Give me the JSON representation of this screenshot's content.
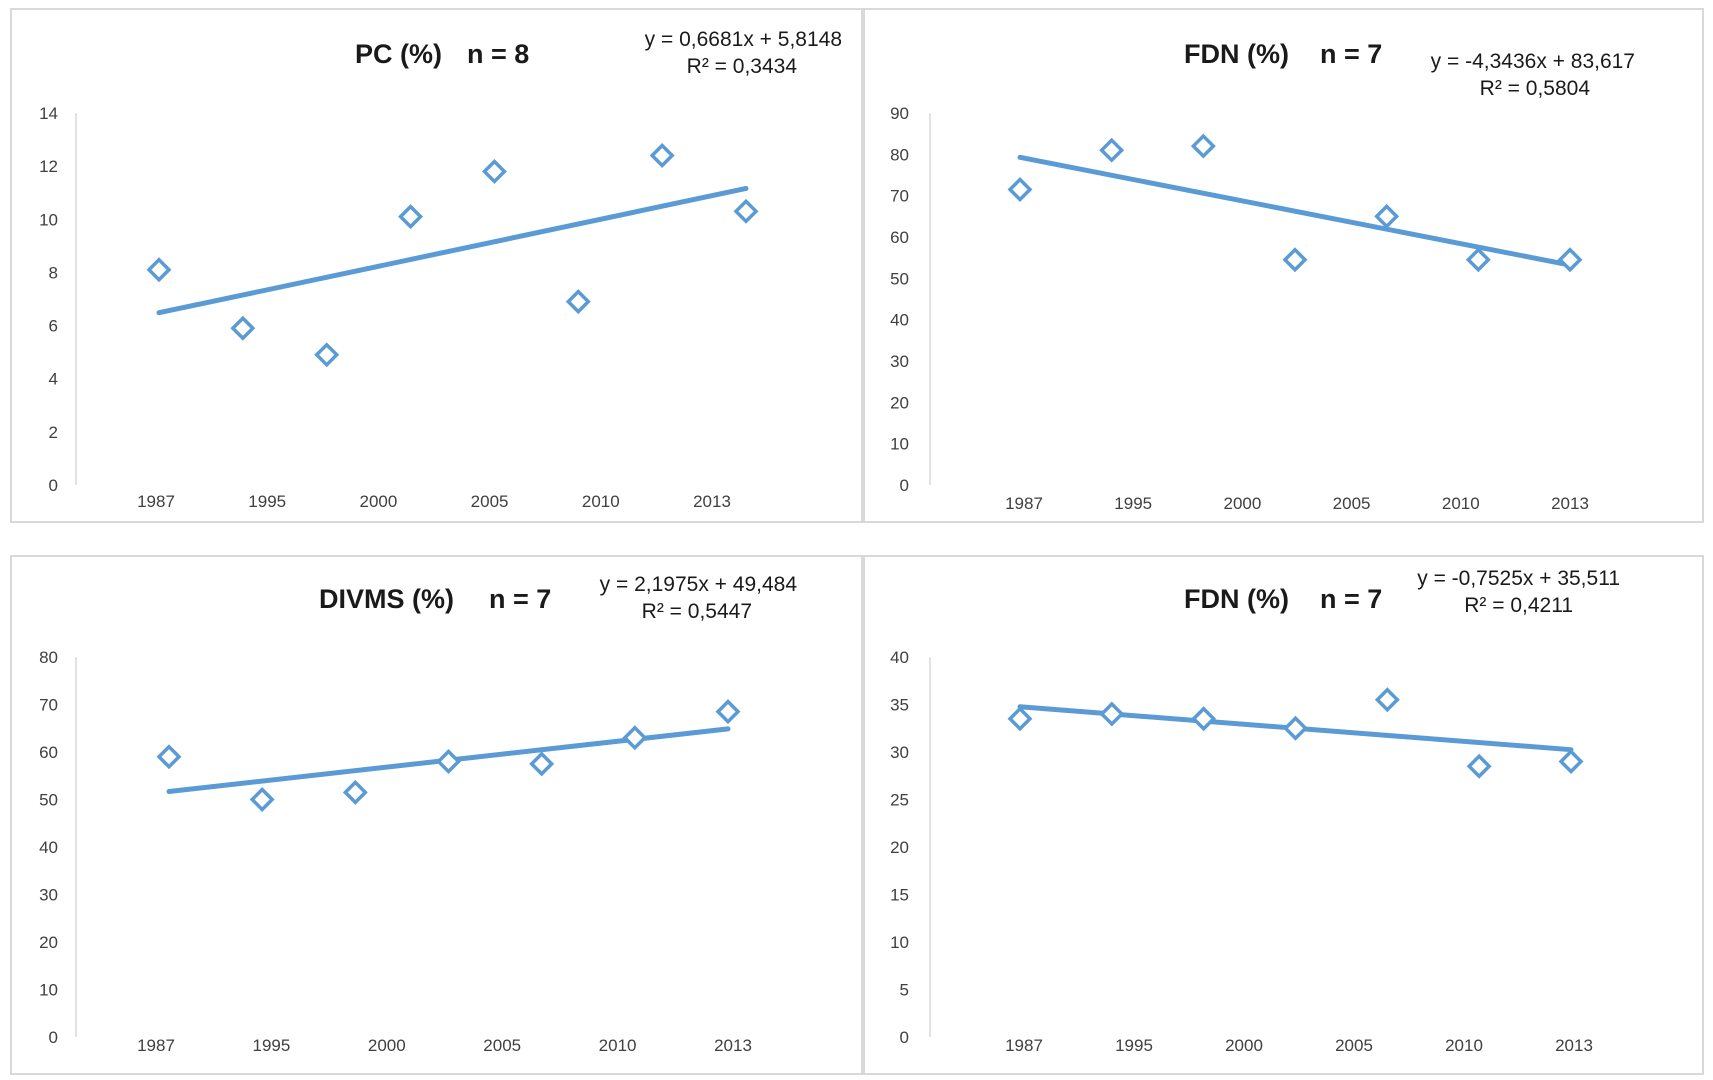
{
  "chart_data": [
    {
      "type": "scatter",
      "title": "PC (%)",
      "n_label": "n = 8",
      "equation": "y = 0,6681x + 5,8148",
      "r2": "R² = 0,3434",
      "categories": [
        "1987",
        "1995",
        "2000",
        "2005",
        "2010",
        "2013"
      ],
      "x": [
        1,
        2,
        3,
        4,
        5,
        6,
        7,
        8
      ],
      "y": [
        8.1,
        5.9,
        4.9,
        10.1,
        11.8,
        6.9,
        12.4,
        10.3
      ],
      "trend": {
        "slope": 0.6681,
        "intercept": 5.8148
      },
      "ylim": [
        0,
        14
      ],
      "yticks": [
        "0",
        "2",
        "4",
        "6",
        "8",
        "10",
        "12",
        "14"
      ],
      "color": "#5b9bd5"
    },
    {
      "type": "scatter",
      "title": "FDN (%)",
      "n_label": "n = 7",
      "equation": "y = -4,3436x + 83,617",
      "r2": "R² = 0,5804",
      "categories": [
        "1987",
        "1995",
        "2000",
        "2005",
        "2010",
        "2013"
      ],
      "x": [
        1,
        2,
        3,
        4,
        5,
        6,
        7
      ],
      "y": [
        71.5,
        81,
        82,
        54.5,
        65,
        54.5,
        54.5
      ],
      "trend": {
        "slope": -4.3436,
        "intercept": 83.617
      },
      "ylim": [
        0,
        90
      ],
      "yticks": [
        "0",
        "10",
        "20",
        "30",
        "40",
        "50",
        "60",
        "70",
        "80",
        "90"
      ],
      "color": "#5b9bd5"
    },
    {
      "type": "scatter",
      "title": "DIVMS (%)",
      "n_label": "n = 7",
      "equation": "y = 2,1975x + 49,484",
      "r2": "R² = 0,5447",
      "categories": [
        "1987",
        "1995",
        "2000",
        "2005",
        "2010",
        "2013"
      ],
      "x": [
        1,
        2,
        3,
        4,
        5,
        6,
        7
      ],
      "y": [
        59,
        50,
        51.5,
        58,
        57.5,
        63,
        68.5
      ],
      "trend": {
        "slope": 2.1975,
        "intercept": 49.484
      },
      "ylim": [
        0,
        80
      ],
      "yticks": [
        "0",
        "10",
        "20",
        "30",
        "40",
        "50",
        "60",
        "70",
        "80"
      ],
      "color": "#5b9bd5"
    },
    {
      "type": "scatter",
      "title": "FDN (%)",
      "n_label": "n = 7",
      "equation": "y = -0,7525x + 35,511",
      "r2": "R² = 0,4211",
      "categories": [
        "1987",
        "1995",
        "2000",
        "2005",
        "2010",
        "2013"
      ],
      "x": [
        1,
        2,
        3,
        4,
        5,
        6,
        7
      ],
      "y": [
        33.5,
        34,
        33.5,
        32.5,
        35.5,
        28.5,
        29
      ],
      "trend": {
        "slope": -0.7525,
        "intercept": 35.511
      },
      "ylim": [
        0,
        40
      ],
      "yticks": [
        "0",
        "5",
        "10",
        "15",
        "20",
        "25",
        "30",
        "35",
        "40"
      ],
      "color": "#5b9bd5"
    }
  ]
}
